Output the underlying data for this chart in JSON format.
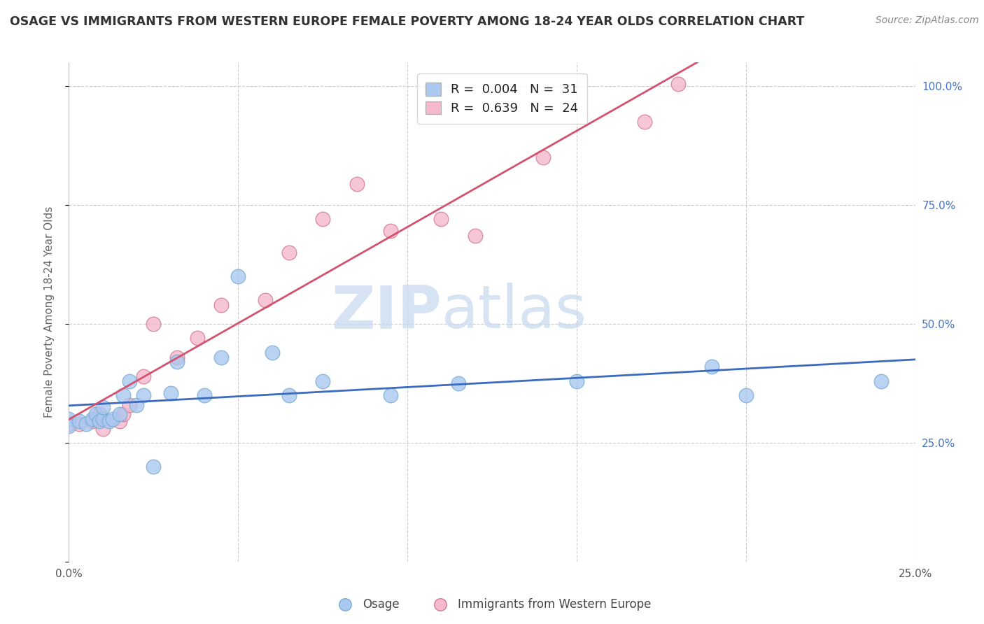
{
  "title": "OSAGE VS IMMIGRANTS FROM WESTERN EUROPE FEMALE POVERTY AMONG 18-24 YEAR OLDS CORRELATION CHART",
  "source": "Source: ZipAtlas.com",
  "ylabel": "Female Poverty Among 18-24 Year Olds",
  "xmin": 0.0,
  "xmax": 0.25,
  "ymin": 0.0,
  "ymax": 1.05,
  "xticks": [
    0.0,
    0.05,
    0.1,
    0.15,
    0.2,
    0.25
  ],
  "xtick_labels": [
    "0.0%",
    "",
    "",
    "",
    "",
    "25.0%"
  ],
  "yticks": [
    0.25,
    0.5,
    0.75,
    1.0
  ],
  "ytick_labels": [
    "25.0%",
    "50.0%",
    "75.0%",
    "100.0%"
  ],
  "legend_entries": [
    {
      "label": "R =  0.004   N =  31",
      "color": "#aac8f0"
    },
    {
      "label": "R =  0.639   N =  24",
      "color": "#f0aac0"
    }
  ],
  "osage_x": [
    0.0,
    0.0,
    0.003,
    0.005,
    0.007,
    0.008,
    0.009,
    0.01,
    0.01,
    0.012,
    0.013,
    0.015,
    0.016,
    0.018,
    0.02,
    0.022,
    0.025,
    0.03,
    0.032,
    0.04,
    0.045,
    0.05,
    0.06,
    0.065,
    0.075,
    0.095,
    0.115,
    0.15,
    0.19,
    0.2,
    0.24
  ],
  "osage_y": [
    0.3,
    0.285,
    0.295,
    0.29,
    0.3,
    0.31,
    0.295,
    0.3,
    0.325,
    0.295,
    0.3,
    0.31,
    0.35,
    0.38,
    0.33,
    0.35,
    0.2,
    0.355,
    0.42,
    0.35,
    0.43,
    0.6,
    0.44,
    0.35,
    0.38,
    0.35,
    0.375,
    0.38,
    0.41,
    0.35,
    0.38
  ],
  "immigrants_x": [
    0.0,
    0.003,
    0.007,
    0.008,
    0.009,
    0.01,
    0.015,
    0.016,
    0.018,
    0.022,
    0.025,
    0.032,
    0.038,
    0.045,
    0.058,
    0.065,
    0.075,
    0.085,
    0.095,
    0.11,
    0.12,
    0.14,
    0.17,
    0.18
  ],
  "immigrants_y": [
    0.29,
    0.29,
    0.295,
    0.3,
    0.31,
    0.28,
    0.295,
    0.31,
    0.33,
    0.39,
    0.5,
    0.43,
    0.47,
    0.54,
    0.55,
    0.65,
    0.72,
    0.795,
    0.695,
    0.72,
    0.685,
    0.85,
    0.925,
    1.005
  ],
  "osage_color": "#aac8f0",
  "osage_edge_color": "#7aaed4",
  "immigrants_color": "#f5b8cc",
  "immigrants_edge_color": "#d47a94",
  "osage_line_color": "#3a6bbf",
  "immigrants_line_color": "#d4526e",
  "watermark_zip": "ZIP",
  "watermark_atlas": "atlas",
  "background_color": "#ffffff",
  "grid_color": "#cccccc"
}
